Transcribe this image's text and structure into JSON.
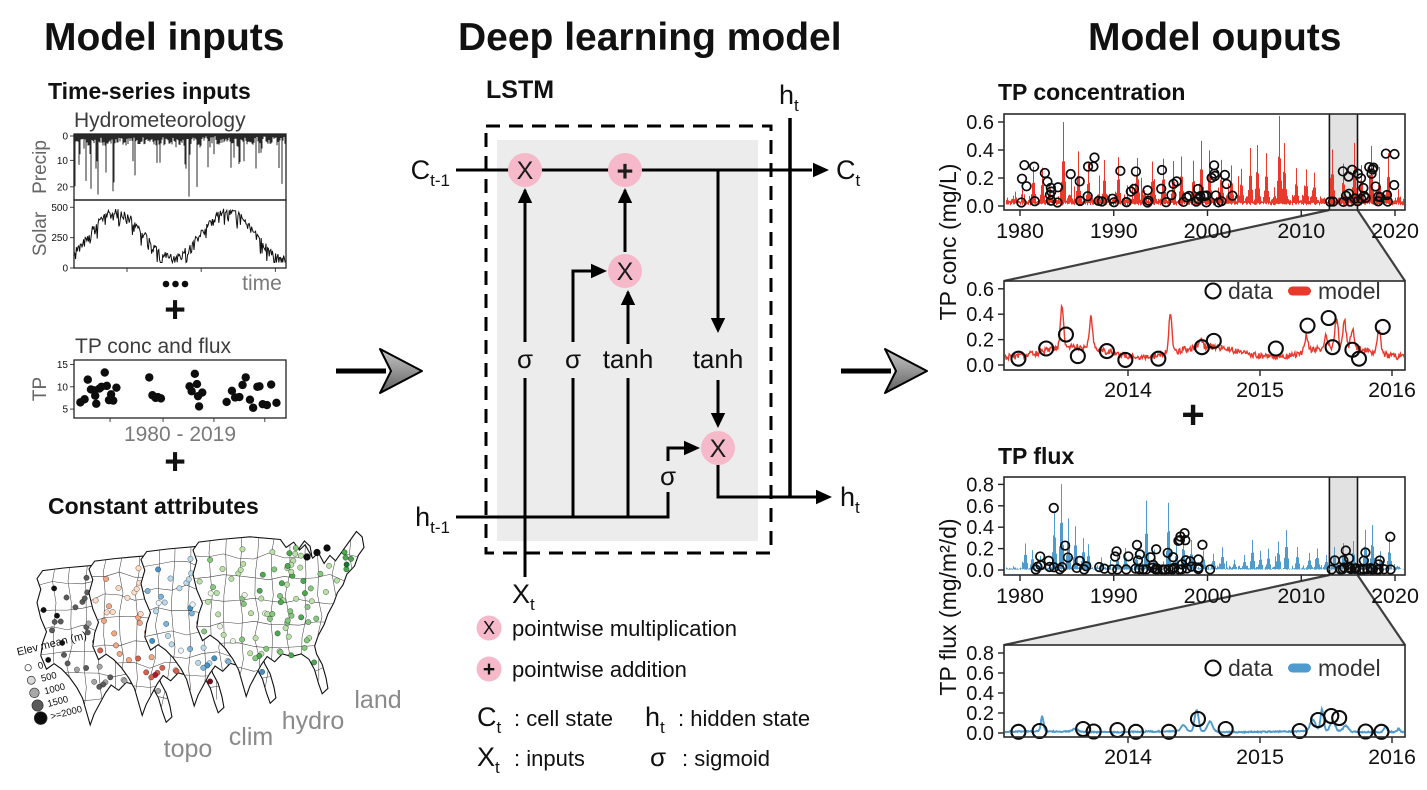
{
  "colors": {
    "red": "#e8392b",
    "blue": "#4f9bcd",
    "pink": "#f6b9c9",
    "lstm_box_fill": "#ececec",
    "trapezoid_fill": "#e9e9e9",
    "band_fill": "#e2e2e2",
    "arrow_gray": "#9a9a9a"
  },
  "header": {
    "left": "Model inputs",
    "center": "Deep learning model",
    "right": "Model ouputs"
  },
  "inputs": {
    "section_title": "Time-series inputs",
    "hydro_title": "Hydrometeorology",
    "time_label": "time",
    "plus": "+",
    "ellipsis": "...",
    "constant_title": "Constant attributes"
  },
  "map": {
    "labels": [
      "topo",
      "clim",
      "hydro",
      "land"
    ],
    "elev_legend": {
      "title": "Elev mean (m)",
      "items": [
        "0",
        "500",
        "1000",
        "1500",
        ">=2000"
      ]
    },
    "palettes": {
      "topo": [
        "#ffffff",
        "#d4d4d4",
        "#a3a3a3",
        "#5b5b5b",
        "#101010"
      ],
      "clim": [
        "#fddbc7",
        "#f4a582",
        "#d6604d",
        "#b2182b",
        "#7a0c20"
      ],
      "hydro": [
        "#eaf4fb",
        "#b9d9ec",
        "#7cb5da",
        "#4292c6",
        "#1f6aae"
      ],
      "land": [
        "#e9f5e2",
        "#b9e0a6",
        "#85c87d",
        "#4aa84e",
        "#17762d"
      ]
    },
    "n_sites": 85,
    "seed": 5
  },
  "lstm": {
    "title": "LSTM",
    "nodes": {
      "c_prev": {
        "base": "C",
        "sub": "t-1"
      },
      "c_next": {
        "base": "C",
        "sub": "t"
      },
      "h_prev": {
        "base": "h",
        "sub": "t-1"
      },
      "h_top": {
        "base": "h",
        "sub": "t"
      },
      "h_out": {
        "base": "h",
        "sub": "t"
      },
      "x_in": {
        "base": "X",
        "sub": "t"
      }
    },
    "gates": {
      "sigmoid": "σ",
      "tanh": "tanh"
    },
    "ops": {
      "multiply": "X",
      "add": "+"
    },
    "legend": {
      "mult": {
        "symbol": "X",
        "text": "pointwise multiplication"
      },
      "add": {
        "symbol": "+",
        "text": "pointwise addition"
      }
    },
    "defs": [
      {
        "base": "C",
        "sub": "t",
        "text": ": cell state"
      },
      {
        "base": "h",
        "sub": "t",
        "text": ": hidden state"
      },
      {
        "base": "X",
        "sub": "t",
        "text": ": inputs"
      },
      {
        "base": "σ",
        "sub": "",
        "text": ": sigmoid"
      }
    ]
  },
  "outputs": {
    "plus": "+"
  },
  "chart_data": [
    {
      "id": "precip",
      "type": "line",
      "panel": "Hydrometeorology",
      "ylabel": "Precip",
      "yticks": [
        "0",
        "10",
        "20"
      ],
      "ytick_vals": [
        0,
        10,
        20
      ],
      "ylim": [
        0,
        25
      ],
      "orientation": "spikes-from-top",
      "seed": 7
    },
    {
      "id": "solar",
      "type": "line",
      "panel": "Hydrometeorology",
      "ylabel": "Solar",
      "yticks": [
        "500",
        "250",
        "0"
      ],
      "ytick_vals": [
        500,
        250,
        0
      ],
      "ylim": [
        0,
        560
      ],
      "xlabel": "time",
      "cycles": 1.9,
      "seed": 11
    },
    {
      "id": "tp_observations",
      "type": "scatter",
      "title": "TP conc and flux",
      "ylabel": "TP",
      "yticks": [
        "15",
        "10",
        "5"
      ],
      "ytick_vals": [
        15,
        10,
        5
      ],
      "ylim": [
        3,
        16
      ],
      "xlabel": "1980 - 2019",
      "points": [
        [
          0.03,
          6.5
        ],
        [
          0.05,
          7.2
        ],
        [
          0.065,
          11.6
        ],
        [
          0.08,
          9.4
        ],
        [
          0.095,
          9.2
        ],
        [
          0.1,
          8.0
        ],
        [
          0.105,
          6.2
        ],
        [
          0.12,
          9.6
        ],
        [
          0.13,
          10.0
        ],
        [
          0.145,
          13.2
        ],
        [
          0.155,
          10.2
        ],
        [
          0.165,
          7.0
        ],
        [
          0.175,
          8.3
        ],
        [
          0.185,
          6.9
        ],
        [
          0.2,
          9.8
        ],
        [
          0.355,
          12.1
        ],
        [
          0.37,
          8.1
        ],
        [
          0.385,
          7.5
        ],
        [
          0.395,
          7.7
        ],
        [
          0.41,
          7.4
        ],
        [
          0.545,
          10.1
        ],
        [
          0.555,
          9.0
        ],
        [
          0.57,
          12.9
        ],
        [
          0.58,
          10.6
        ],
        [
          0.585,
          7.9
        ],
        [
          0.59,
          5.6
        ],
        [
          0.605,
          8.7
        ],
        [
          0.72,
          6.6
        ],
        [
          0.745,
          9.1
        ],
        [
          0.76,
          7.6
        ],
        [
          0.78,
          7.7
        ],
        [
          0.795,
          10.4
        ],
        [
          0.81,
          12.1
        ],
        [
          0.83,
          7.1
        ],
        [
          0.845,
          5.3
        ],
        [
          0.865,
          10.0
        ],
        [
          0.875,
          10.1
        ],
        [
          0.89,
          6.1
        ],
        [
          0.91,
          5.9
        ],
        [
          0.93,
          10.5
        ],
        [
          0.955,
          6.4
        ]
      ]
    },
    {
      "id": "tp_conc_full",
      "type": "line+scatter",
      "title": "TP concentration",
      "ylabel": "TP conc (mg/L)",
      "yticks": [
        "0.6",
        "0.4",
        "0.2",
        "0.0"
      ],
      "ytick_vals": [
        0.6,
        0.4,
        0.2,
        0.0
      ],
      "xticks": [
        "1980",
        "1990",
        "2000",
        "2010",
        "2020"
      ],
      "xtick_vals": [
        1980,
        1990,
        2000,
        2010,
        2020
      ],
      "xlim": [
        1978.5,
        2021
      ],
      "ylim": [
        0,
        0.655
      ],
      "zoom_window": [
        2013,
        2016
      ],
      "series": [
        {
          "name": "model",
          "color": "#e8392b"
        },
        {
          "name": "data",
          "color": "#111111"
        }
      ],
      "noise": {
        "base0": 0.03,
        "baseA": 0.05,
        "baseB": 0.12,
        "pow": 5,
        "pSpike": 0.05,
        "mSpike": 0.12,
        "lo0": 0.004,
        "lo1": 0.02
      },
      "spikes": [
        [
          1981.4,
          0.3
        ],
        [
          1982.3,
          0.28
        ],
        [
          1984.6,
          0.62
        ],
        [
          1986.2,
          0.4
        ],
        [
          1987.3,
          0.3
        ],
        [
          1989.0,
          0.33
        ],
        [
          1990.5,
          0.35
        ],
        [
          1992.5,
          0.34
        ],
        [
          1994.1,
          0.33
        ],
        [
          1995.2,
          0.36
        ],
        [
          1996.3,
          0.33
        ],
        [
          1997.2,
          0.38
        ],
        [
          1998.4,
          0.33
        ],
        [
          1999.3,
          0.48
        ],
        [
          2000.2,
          0.42
        ],
        [
          2001.4,
          0.33
        ],
        [
          2002.5,
          0.3
        ],
        [
          2003.6,
          0.28
        ],
        [
          2004.5,
          0.42
        ],
        [
          2005.3,
          0.45
        ],
        [
          2006.2,
          0.4
        ],
        [
          2007.6,
          0.64
        ],
        [
          2008.2,
          0.44
        ],
        [
          2009.4,
          0.28
        ],
        [
          2010.5,
          0.26
        ],
        [
          2011.4,
          0.24
        ],
        [
          2013.3,
          0.43
        ],
        [
          2014.4,
          0.3
        ],
        [
          2015.6,
          0.47
        ],
        [
          2016.4,
          0.3
        ],
        [
          2017.4,
          0.42
        ],
        [
          2018.3,
          0.28
        ],
        [
          2019.3,
          0.4
        ]
      ],
      "circle_ranges": [
        {
          "t0": 1980,
          "t1": 2001.5,
          "n": 57,
          "vmin": 0.025,
          "vamp": 0.33,
          "vpow": 2.4
        },
        {
          "t0": 2001.6,
          "t1": 2003.2,
          "n": 3,
          "vmin": 0.05,
          "vamp": 0.18,
          "vpow": 1
        },
        {
          "t0": 2013,
          "t1": 2020,
          "n": 30,
          "vmin": 0.03,
          "vamp": 0.36,
          "vpow": 1.8
        }
      ],
      "seed": 21
    },
    {
      "id": "tp_conc_zoom",
      "type": "line+scatter",
      "color": "#e8392b",
      "xticks": [
        "2014",
        "2015",
        "2016"
      ],
      "xtick_vals": [
        2014,
        2015,
        2016
      ],
      "xlim": [
        2013.06,
        2016.12
      ],
      "ylim": [
        0,
        0.66
      ],
      "yticks": [
        "0.6",
        "0.4",
        "0.2",
        "0.0"
      ],
      "ytick_vals": [
        0.6,
        0.4,
        0.2,
        0.0
      ],
      "legend": {
        "data": "data",
        "model": "model"
      },
      "line": {
        "base": 0.105,
        "seasAmp": 0.04,
        "seasPhase": 2013.35,
        "noise": 0.05,
        "vmin": 0.012,
        "lw": 1.4
      },
      "spikes": [
        [
          2013.5,
          0.32
        ],
        [
          2013.72,
          0.24
        ],
        [
          2014.32,
          0.3
        ],
        [
          2014.55,
          0.07
        ],
        [
          2015.35,
          0.12
        ],
        [
          2015.5,
          0.1
        ],
        [
          2015.58,
          0.22
        ],
        [
          2015.64,
          0.2
        ],
        [
          2015.7,
          0.15
        ],
        [
          2015.9,
          0.2
        ]
      ],
      "points": [
        [
          2013.17,
          0.05
        ],
        [
          2013.38,
          0.13
        ],
        [
          2013.53,
          0.24
        ],
        [
          2013.62,
          0.07
        ],
        [
          2013.84,
          0.11
        ],
        [
          2013.98,
          0.04
        ],
        [
          2014.23,
          0.05
        ],
        [
          2014.56,
          0.14
        ],
        [
          2014.65,
          0.19
        ],
        [
          2015.12,
          0.13
        ],
        [
          2015.36,
          0.31
        ],
        [
          2015.52,
          0.37
        ],
        [
          2015.55,
          0.14
        ],
        [
          2015.7,
          0.12
        ],
        [
          2015.75,
          0.05
        ],
        [
          2015.93,
          0.3
        ]
      ],
      "seed": 31
    },
    {
      "id": "tp_flux_full",
      "type": "line+scatter",
      "title": "TP flux",
      "ylabel": "TP flux (mg/m²/d)",
      "yticks": [
        "0.8",
        "0.6",
        "0.4",
        "0.2",
        "0.0"
      ],
      "ytick_vals": [
        0.8,
        0.6,
        0.4,
        0.2,
        0.0
      ],
      "xticks": [
        "1980",
        "1990",
        "2000",
        "2010",
        "2020"
      ],
      "xtick_vals": [
        1980,
        1990,
        2000,
        2010,
        2020
      ],
      "xlim": [
        1978.5,
        2021
      ],
      "ylim": [
        0,
        0.85
      ],
      "zoom_window": [
        2013,
        2016
      ],
      "series": [
        {
          "name": "model",
          "color": "#4f9bcd"
        },
        {
          "name": "data",
          "color": "#111111"
        }
      ],
      "noise": {
        "base0": 0.008,
        "baseA": 0.03,
        "baseB": 0.06,
        "pow": 7,
        "pSpike": 0.03,
        "mSpike": 0.07,
        "lo0": 0.002,
        "lo1": 0.008
      },
      "spikes": [
        [
          1980.5,
          0.25
        ],
        [
          1981.3,
          0.18
        ],
        [
          1983.6,
          0.58
        ],
        [
          1984.4,
          0.82
        ],
        [
          1985.1,
          0.5
        ],
        [
          1985.9,
          0.42
        ],
        [
          1986.7,
          0.3
        ],
        [
          1987.3,
          0.24
        ],
        [
          1988.6,
          0.12
        ],
        [
          1990.3,
          0.15
        ],
        [
          1991.2,
          0.22
        ],
        [
          1992.4,
          0.18
        ],
        [
          1993.4,
          0.63
        ],
        [
          1994.3,
          0.2
        ],
        [
          1995.8,
          0.65
        ],
        [
          1996.6,
          0.25
        ],
        [
          1997.4,
          0.35
        ],
        [
          1998.2,
          0.28
        ],
        [
          1999.5,
          0.18
        ],
        [
          2000.6,
          0.15
        ],
        [
          2001.5,
          0.22
        ],
        [
          2002.8,
          0.1
        ],
        [
          2003.9,
          0.14
        ],
        [
          2004.8,
          0.3
        ],
        [
          2005.6,
          0.18
        ],
        [
          2006.5,
          0.2
        ],
        [
          2007.5,
          0.28
        ],
        [
          2008.4,
          0.4
        ],
        [
          2009.6,
          0.22
        ],
        [
          2010.8,
          0.16
        ],
        [
          2011.7,
          0.2
        ],
        [
          2012.6,
          0.14
        ],
        [
          2013.5,
          0.22
        ],
        [
          2014.5,
          0.25
        ],
        [
          2015.5,
          0.28
        ],
        [
          2016.8,
          0.4
        ],
        [
          2017.5,
          0.42
        ],
        [
          2018.4,
          0.18
        ],
        [
          2019.4,
          0.3
        ]
      ],
      "special_points": [
        [
          1983.6,
          0.58
        ],
        [
          2019.5,
          0.31
        ]
      ],
      "circle_ranges": [
        {
          "t0": 1980,
          "t1": 2000.5,
          "n": 58,
          "vmin": 0.005,
          "vamp": 0.24,
          "vpow": 3.2
        },
        {
          "t0": 1996.9,
          "t1": 1997.7,
          "n": 6,
          "vmin": 0.05,
          "vamp": 0.3,
          "vpow": 1
        },
        {
          "t0": 2013,
          "t1": 2020,
          "n": 28,
          "vmin": 0.005,
          "vamp": 0.2,
          "vpow": 3
        }
      ],
      "seed": 41
    },
    {
      "id": "tp_flux_zoom",
      "type": "line+scatter",
      "color": "#4f9bcd",
      "xticks": [
        "2014",
        "2015",
        "2016"
      ],
      "xtick_vals": [
        2014,
        2015,
        2016
      ],
      "xlim": [
        2013.06,
        2016.12
      ],
      "ylim": [
        0,
        0.86
      ],
      "yticks": [
        "0.8",
        "0.6",
        "0.4",
        "0.2",
        "0.0"
      ],
      "ytick_vals": [
        0.8,
        0.6,
        0.4,
        0.2,
        0.0
      ],
      "legend": {
        "data": "data",
        "model": "model"
      },
      "line": {
        "base": 0.013,
        "seasAmp": 0.004,
        "seasPhase": 2013.1,
        "noise": 0.012,
        "vmin": 0.004,
        "lw": 1.9
      },
      "bumps": [
        [
          2013.35,
          0.15,
          0.01
        ],
        [
          2013.6,
          0.03,
          0.02
        ],
        [
          2014.42,
          0.06,
          0.02
        ],
        [
          2014.52,
          0.22,
          0.015
        ],
        [
          2014.62,
          0.1,
          0.02
        ],
        [
          2015.4,
          0.12,
          0.02
        ],
        [
          2015.47,
          0.22,
          0.012
        ],
        [
          2015.55,
          0.1,
          0.02
        ],
        [
          2015.65,
          0.06,
          0.02
        ],
        [
          2015.95,
          0.05,
          0.012
        ],
        [
          2016.05,
          0.03,
          0.01
        ]
      ],
      "points": [
        [
          2013.17,
          0.012
        ],
        [
          2013.33,
          0.02
        ],
        [
          2013.66,
          0.04
        ],
        [
          2013.74,
          0.015
        ],
        [
          2013.92,
          0.03
        ],
        [
          2014.06,
          0.012
        ],
        [
          2014.31,
          0.012
        ],
        [
          2014.53,
          0.14
        ],
        [
          2014.74,
          0.04
        ],
        [
          2015.3,
          0.02
        ],
        [
          2015.44,
          0.13
        ],
        [
          2015.54,
          0.17
        ],
        [
          2015.6,
          0.15
        ],
        [
          2015.8,
          0.015
        ],
        [
          2015.92,
          0.012
        ]
      ],
      "seed": 51
    }
  ]
}
